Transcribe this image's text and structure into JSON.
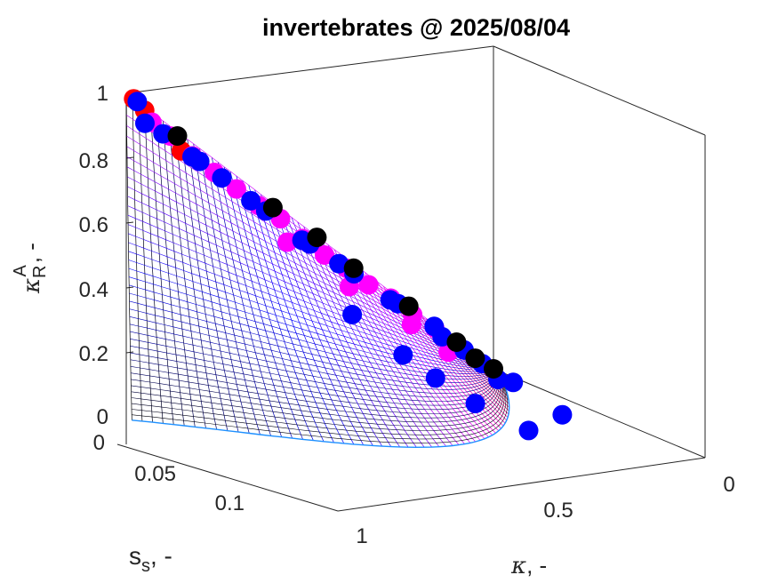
{
  "chart_data": {
    "type": "scatter3d",
    "title": "invertebrates @ 2025/08/04",
    "axes": {
      "x": {
        "label": "κ, -",
        "range": [
          0,
          1
        ],
        "ticks": [
          "0",
          "0.5",
          "1"
        ],
        "reversed": true
      },
      "y": {
        "label": "s_s, -",
        "range": [
          0,
          0.15
        ],
        "ticks": [
          "0",
          "0.05",
          "0.1"
        ]
      },
      "z": {
        "label": "κ_R^A, -",
        "range": [
          0,
          1
        ],
        "ticks": [
          "0",
          "0.2",
          "0.4",
          "0.6",
          "0.8",
          "1"
        ]
      }
    },
    "grid": false,
    "surface": {
      "description": "mesh surface colored black (low) to blue to magenta to red (high)",
      "colormap": [
        "#000000",
        "#0000ff",
        "#ff00ff",
        "#ff0000"
      ]
    },
    "colors": {
      "red": "#ff0000",
      "magenta": "#ff00ff",
      "blue": "#0000ff",
      "black": "#000000",
      "boundary": "#1e90ff"
    },
    "series": [
      {
        "color": "red",
        "points": [
          [
            0.98,
            0.0,
            0.98
          ],
          [
            0.95,
            0.0,
            0.94
          ],
          [
            0.85,
            0.0,
            0.8
          ]
        ]
      },
      {
        "color": "magenta",
        "points": [
          [
            0.93,
            0,
            0.9
          ],
          [
            0.88,
            0,
            0.85
          ],
          [
            0.82,
            0,
            0.78
          ],
          [
            0.76,
            0,
            0.72
          ],
          [
            0.7,
            0,
            0.66
          ],
          [
            0.64,
            0,
            0.6
          ],
          [
            0.58,
            0,
            0.55
          ],
          [
            0.52,
            0,
            0.48
          ],
          [
            0.46,
            0,
            0.42
          ],
          [
            0.4,
            0,
            0.37
          ],
          [
            0.34,
            0,
            0.31
          ],
          [
            0.28,
            0,
            0.26
          ],
          [
            0.22,
            0,
            0.2
          ],
          [
            0.16,
            0,
            0.15
          ],
          [
            0.1,
            0,
            0.09
          ],
          [
            0.6,
            0.01,
            0.5
          ],
          [
            0.45,
            0.015,
            0.35
          ],
          [
            0.3,
            0.02,
            0.22
          ],
          [
            0.2,
            0.02,
            0.12
          ]
        ]
      },
      {
        "color": "blue",
        "points": [
          [
            0.97,
            0,
            0.97
          ],
          [
            0.98,
            0.008,
            0.92
          ],
          [
            0.9,
            0,
            0.86
          ],
          [
            0.84,
            0.005,
            0.79
          ],
          [
            0.8,
            0,
            0.76
          ],
          [
            0.74,
            0,
            0.7
          ],
          [
            0.68,
            0.005,
            0.63
          ],
          [
            0.62,
            0,
            0.58
          ],
          [
            0.56,
            0.01,
            0.5
          ],
          [
            0.5,
            0,
            0.46
          ],
          [
            0.44,
            0.005,
            0.4
          ],
          [
            0.38,
            0,
            0.35
          ],
          [
            0.32,
            0.01,
            0.28
          ],
          [
            0.26,
            0,
            0.24
          ],
          [
            0.2,
            0.01,
            0.18
          ],
          [
            0.14,
            0,
            0.12
          ],
          [
            0.08,
            0,
            0.07
          ],
          [
            0.03,
            0,
            0.02
          ],
          [
            0.5,
            0.03,
            0.3
          ],
          [
            0.4,
            0.04,
            0.18
          ],
          [
            0.35,
            0.05,
            0.12
          ],
          [
            0.28,
            0.06,
            0.05
          ],
          [
            0.25,
            0.09,
            0.02
          ],
          [
            0.18,
            0.05,
            0.09
          ],
          [
            0.1,
            0.04,
            0.05
          ],
          [
            0.12,
            0.08,
            0.03
          ]
        ]
      },
      {
        "color": "black",
        "points": [
          [
            0.88,
            0.005,
            0.86
          ],
          [
            0.62,
            0.005,
            0.6
          ],
          [
            0.5,
            0.005,
            0.49
          ],
          [
            0.4,
            0.005,
            0.38
          ],
          [
            0.25,
            0.005,
            0.24
          ],
          [
            0.12,
            0.005,
            0.11
          ],
          [
            0.05,
            0,
            0.04
          ],
          [
            0.0,
            0,
            0.0
          ]
        ]
      }
    ]
  }
}
